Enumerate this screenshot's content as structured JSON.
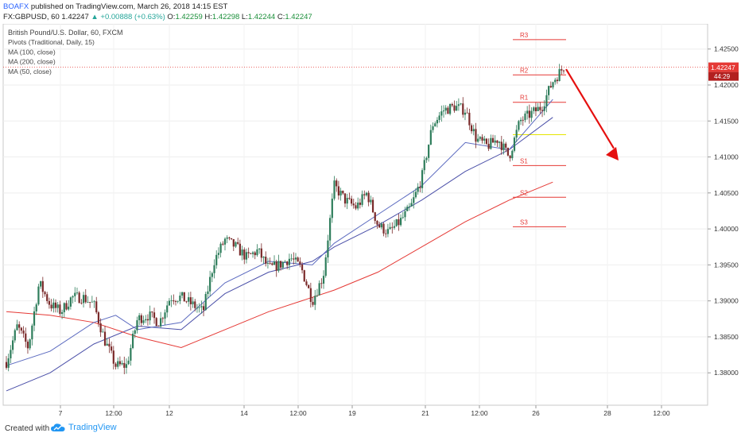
{
  "header": {
    "author": "BOAFX",
    "published": "published on TradingView.com, March 26, 2018 14:15 EST",
    "symbol": "FX:GBPUSD, 60",
    "price": "1.42247",
    "change": "▲ +0.00888 (+0.63%)",
    "open_label": "O:",
    "open": "1.42259",
    "high_label": "H:",
    "high": "1.42298",
    "low_label": "L:",
    "low": "1.42244",
    "close_label": "C:",
    "close": "1.42247"
  },
  "legend": [
    "British Pound/U.S. Dollar, 60, FXCM",
    "Pivots (Traditional, Daily, 15)",
    "MA (100, close)",
    "MA (200, close)",
    "MA (50, close)"
  ],
  "footer": {
    "created": "Created with",
    "brand": "TradingView"
  },
  "chart_data": {
    "type": "line",
    "subtype": "candlestick-with-moving-averages",
    "instrument": "British Pound/U.S. Dollar, 60, FXCM",
    "ylim": [
      1.3755,
      1.4285
    ],
    "y_ticks": [
      "1.42500",
      "1.42000",
      "1.41500",
      "1.41000",
      "1.40500",
      "1.40000",
      "1.39500",
      "1.39000",
      "1.38500",
      "1.38000"
    ],
    "x_ticks": [
      "7",
      "12:00",
      "12",
      "14",
      "12:00",
      "19",
      "21",
      "12:00",
      "26",
      "28",
      "12:00"
    ],
    "current_price": {
      "value": 1.42247,
      "label": "1.42247",
      "countdown": "44:29"
    },
    "price_path": [
      [
        0,
        1.3815
      ],
      [
        1,
        1.3865
      ],
      [
        2,
        1.3835
      ],
      [
        3,
        1.3925
      ],
      [
        4,
        1.3895
      ],
      [
        5,
        1.3885
      ],
      [
        6,
        1.3905
      ],
      [
        7,
        1.3905
      ],
      [
        8,
        1.3895
      ],
      [
        9,
        1.3845
      ],
      [
        10,
        1.381
      ],
      [
        11,
        1.381
      ],
      [
        12,
        1.3875
      ],
      [
        13,
        1.388
      ],
      [
        14,
        1.387
      ],
      [
        15,
        1.3905
      ],
      [
        16,
        1.3905
      ],
      [
        17,
        1.3895
      ],
      [
        18,
        1.3885
      ],
      [
        19,
        1.3955
      ],
      [
        20,
        1.3985
      ],
      [
        21,
        1.3975
      ],
      [
        22,
        1.396
      ],
      [
        23,
        1.397
      ],
      [
        24,
        1.3945
      ],
      [
        25,
        1.395
      ],
      [
        26,
        1.396
      ],
      [
        27,
        1.3945
      ],
      [
        28,
        1.39
      ],
      [
        29,
        1.3935
      ],
      [
        30,
        1.406
      ],
      [
        31,
        1.404
      ],
      [
        32,
        1.403
      ],
      [
        33,
        1.405
      ],
      [
        34,
        1.4005
      ],
      [
        35,
        1.3995
      ],
      [
        36,
        1.401
      ],
      [
        37,
        1.403
      ],
      [
        38,
        1.407
      ],
      [
        39,
        1.4145
      ],
      [
        40,
        1.4165
      ],
      [
        41,
        1.417
      ],
      [
        42,
        1.4165
      ],
      [
        43,
        1.4125
      ],
      [
        44,
        1.4115
      ],
      [
        45,
        1.4125
      ],
      [
        46,
        1.41
      ],
      [
        47,
        1.415
      ],
      [
        48,
        1.416
      ],
      [
        49,
        1.417
      ],
      [
        50,
        1.4205
      ],
      [
        51,
        1.4225
      ]
    ],
    "series": [
      {
        "name": "MA (100, close)",
        "color": "#4a4fa8",
        "values": [
          [
            0,
            1.3775
          ],
          [
            4,
            1.38
          ],
          [
            8,
            1.384
          ],
          [
            12,
            1.3865
          ],
          [
            16,
            1.386
          ],
          [
            20,
            1.391
          ],
          [
            24,
            1.394
          ],
          [
            28,
            1.3955
          ],
          [
            30,
            1.3975
          ],
          [
            34,
            1.4005
          ],
          [
            38,
            1.404
          ],
          [
            42,
            1.408
          ],
          [
            46,
            1.411
          ],
          [
            50,
            1.4155
          ]
        ]
      },
      {
        "name": "MA (200, close)",
        "color": "#e53935",
        "values": [
          [
            0,
            1.3885
          ],
          [
            4,
            1.388
          ],
          [
            8,
            1.387
          ],
          [
            12,
            1.385
          ],
          [
            16,
            1.3835
          ],
          [
            20,
            1.386
          ],
          [
            24,
            1.3885
          ],
          [
            28,
            1.3905
          ],
          [
            30,
            1.3915
          ],
          [
            34,
            1.394
          ],
          [
            38,
            1.3975
          ],
          [
            42,
            1.401
          ],
          [
            46,
            1.404
          ],
          [
            50,
            1.4065
          ]
        ]
      },
      {
        "name": "MA (50, close)",
        "color": "#5c6bc0",
        "values": [
          [
            0,
            1.381
          ],
          [
            4,
            1.383
          ],
          [
            8,
            1.387
          ],
          [
            10,
            1.388
          ],
          [
            12,
            1.386
          ],
          [
            16,
            1.387
          ],
          [
            20,
            1.3925
          ],
          [
            24,
            1.3955
          ],
          [
            28,
            1.395
          ],
          [
            30,
            1.398
          ],
          [
            34,
            1.402
          ],
          [
            38,
            1.406
          ],
          [
            42,
            1.412
          ],
          [
            46,
            1.411
          ],
          [
            50,
            1.418
          ]
        ]
      }
    ],
    "pivots": [
      {
        "label": "R3",
        "value": 1.4263,
        "color": "#e53935"
      },
      {
        "label": "R2",
        "value": 1.4214,
        "color": "#e53935"
      },
      {
        "label": "R1",
        "value": 1.4176,
        "color": "#e53935"
      },
      {
        "label": "",
        "value": 1.4131,
        "color": "#e6e600"
      },
      {
        "label": "S1",
        "value": 1.4088,
        "color": "#e53935"
      },
      {
        "label": "S2",
        "value": 1.4044,
        "color": "#e53935"
      },
      {
        "label": "S3",
        "value": 1.4003,
        "color": "#e53935"
      }
    ],
    "annotation": {
      "type": "arrow",
      "direction": "down",
      "color": "#e5100f"
    },
    "grid": true
  }
}
